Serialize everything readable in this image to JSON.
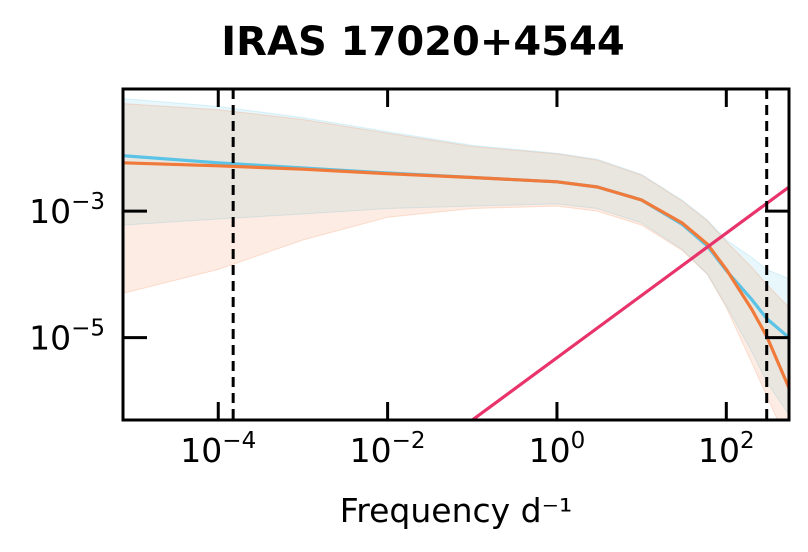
{
  "chart_data": {
    "type": "line",
    "title": "IRAS 17020+4544",
    "xlabel": "Frequency d⁻¹",
    "ylabel": "",
    "xscale": "log",
    "yscale": "log",
    "xlim": [
      7.5e-06,
      550
    ],
    "ylim": [
      5e-07,
      0.085
    ],
    "xticks": [
      {
        "value": 0.0001,
        "base": "10",
        "exp": "−4"
      },
      {
        "value": 0.01,
        "base": "10",
        "exp": "−2"
      },
      {
        "value": 1,
        "base": "10",
        "exp": "0"
      },
      {
        "value": 100,
        "base": "10",
        "exp": "2"
      }
    ],
    "yticks": [
      {
        "value": 0.001,
        "base": "10",
        "exp": "−3"
      },
      {
        "value": 1e-05,
        "base": "10",
        "exp": "−5"
      }
    ],
    "grid": false,
    "vlines": [
      {
        "x": 0.00015,
        "color": "#000000",
        "style": "dashed"
      },
      {
        "x": 300,
        "color": "#000000",
        "style": "dashed"
      }
    ],
    "series": [
      {
        "color": "#5bc3e6",
        "x": [
          7.5e-06,
          0.0001,
          0.001,
          0.01,
          0.1,
          1,
          3,
          10,
          30,
          60,
          100,
          200,
          300,
          550
        ],
        "y": [
          0.0075,
          0.0058,
          0.0048,
          0.004,
          0.0034,
          0.0029,
          0.0024,
          0.0015,
          0.00062,
          0.00028,
          0.000115,
          4e-05,
          2e-05,
          1e-05
        ],
        "band_upper": [
          0.06,
          0.045,
          0.03,
          0.018,
          0.011,
          0.0082,
          0.0066,
          0.0038,
          0.0015,
          0.00072,
          0.00035,
          0.000185,
          0.00012,
          8.5e-05
        ],
        "band_lower": [
          0.0006,
          0.00075,
          0.0009,
          0.0011,
          0.0012,
          0.0013,
          0.0011,
          0.00065,
          0.00025,
          0.0001,
          3.2e-05,
          6e-06,
          2e-06,
          6e-07
        ]
      },
      {
        "color": "#f07a3a",
        "x": [
          7.5e-06,
          0.0001,
          0.001,
          0.01,
          0.1,
          1,
          3,
          10,
          30,
          60,
          100,
          200,
          300,
          550
        ],
        "y": [
          0.0058,
          0.0052,
          0.0046,
          0.0039,
          0.0034,
          0.0029,
          0.0024,
          0.0015,
          0.00065,
          0.0003,
          0.00012,
          2.8e-05,
          1.05e-05,
          1.6e-06
        ],
        "band_upper": [
          0.05,
          0.04,
          0.028,
          0.017,
          0.0105,
          0.008,
          0.0064,
          0.0037,
          0.00145,
          0.0007,
          0.00033,
          0.00013,
          7e-05,
          3e-05
        ],
        "band_lower": [
          5e-05,
          0.00012,
          0.00035,
          0.0008,
          0.0011,
          0.0012,
          0.001,
          0.0006,
          0.00024,
          0.0001,
          3e-05,
          4e-06,
          1.2e-06,
          2e-07
        ]
      },
      {
        "color": "#e8336b",
        "x": [
          0.1,
          550
        ],
        "y": [
          5e-07,
          0.0024
        ]
      }
    ]
  }
}
